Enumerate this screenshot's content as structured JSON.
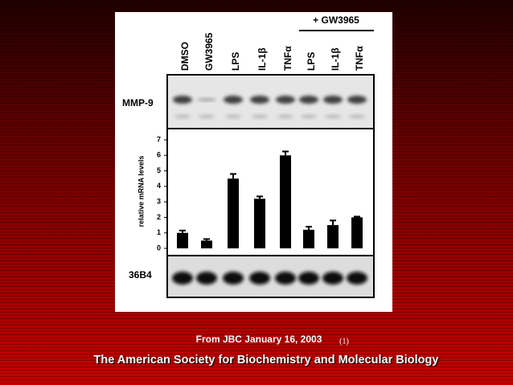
{
  "chart_data": {
    "type": "bar",
    "y_label": "relative mRNA levels",
    "group_label": "+ GW3965",
    "top_blot_label": "MMP-9",
    "bottom_blot_label": "36B4",
    "categories": [
      "DMSO",
      "GW3965",
      "LPS",
      "IL-1β",
      "TNFα",
      "LPS",
      "IL-1β",
      "TNFα"
    ],
    "values": [
      1.0,
      0.5,
      4.5,
      3.2,
      6.0,
      1.2,
      1.5,
      2.0
    ],
    "errors": [
      0.15,
      0.1,
      0.3,
      0.15,
      0.25,
      0.2,
      0.3,
      0.05
    ],
    "color": "#000000",
    "ylim": [
      0,
      7
    ],
    "yticks": [
      0,
      1,
      2,
      3,
      4,
      5,
      6,
      7
    ],
    "grid": false
  },
  "footer": {
    "source": "From JBC January 16, 2003",
    "note": "(1)",
    "publisher": "The American Society for Biochemistry and Molecular Biology"
  }
}
